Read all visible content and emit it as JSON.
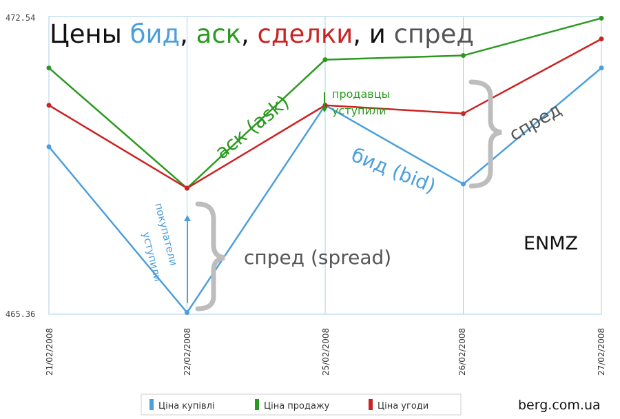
{
  "chart_data": {
    "type": "line",
    "title_parts": [
      {
        "text": "Цены ",
        "color": "#111111"
      },
      {
        "text": "бид",
        "color": "#4a9fdc"
      },
      {
        "text": ", ",
        "color": "#111111"
      },
      {
        "text": "аск",
        "color": "#2a9a1e"
      },
      {
        "text": ", ",
        "color": "#111111"
      },
      {
        "text": "сделки",
        "color": "#cc2222"
      },
      {
        "text": ", и ",
        "color": "#111111"
      },
      {
        "text": "спред",
        "color": "#555555"
      }
    ],
    "categories": [
      "21/02/2008",
      "22/02/2008",
      "25/02/2008",
      "26/02/2008",
      "27/02/2008"
    ],
    "ylim": [
      465.36,
      472.54
    ],
    "y_ticks": [
      "472.54",
      "465.36"
    ],
    "grid": "vertical",
    "legend_position": "bottom-center",
    "series": [
      {
        "name": "Ціна купівлі",
        "color": "#4a9fdc",
        "values": [
          469.4,
          465.4,
          470.4,
          468.5,
          471.3
        ]
      },
      {
        "name": "Ціна продажу",
        "color": "#2a9a1e",
        "values": [
          471.3,
          468.4,
          471.5,
          471.6,
          472.5
        ]
      },
      {
        "name": "Ціна угоди",
        "color": "#cc2222",
        "values": [
          470.4,
          468.4,
          470.4,
          470.2,
          472.0
        ]
      }
    ],
    "annotations": {
      "ask": "аск (ask)",
      "bid": "бид (bid)",
      "sellers": [
        "продавцы",
        "уступили"
      ],
      "buyers": [
        "покупатели",
        "уступили"
      ],
      "spread_ru": "спред",
      "spread_en": "спред (spread)",
      "ticker": "ENMZ"
    },
    "source": "berg.com.ua"
  }
}
